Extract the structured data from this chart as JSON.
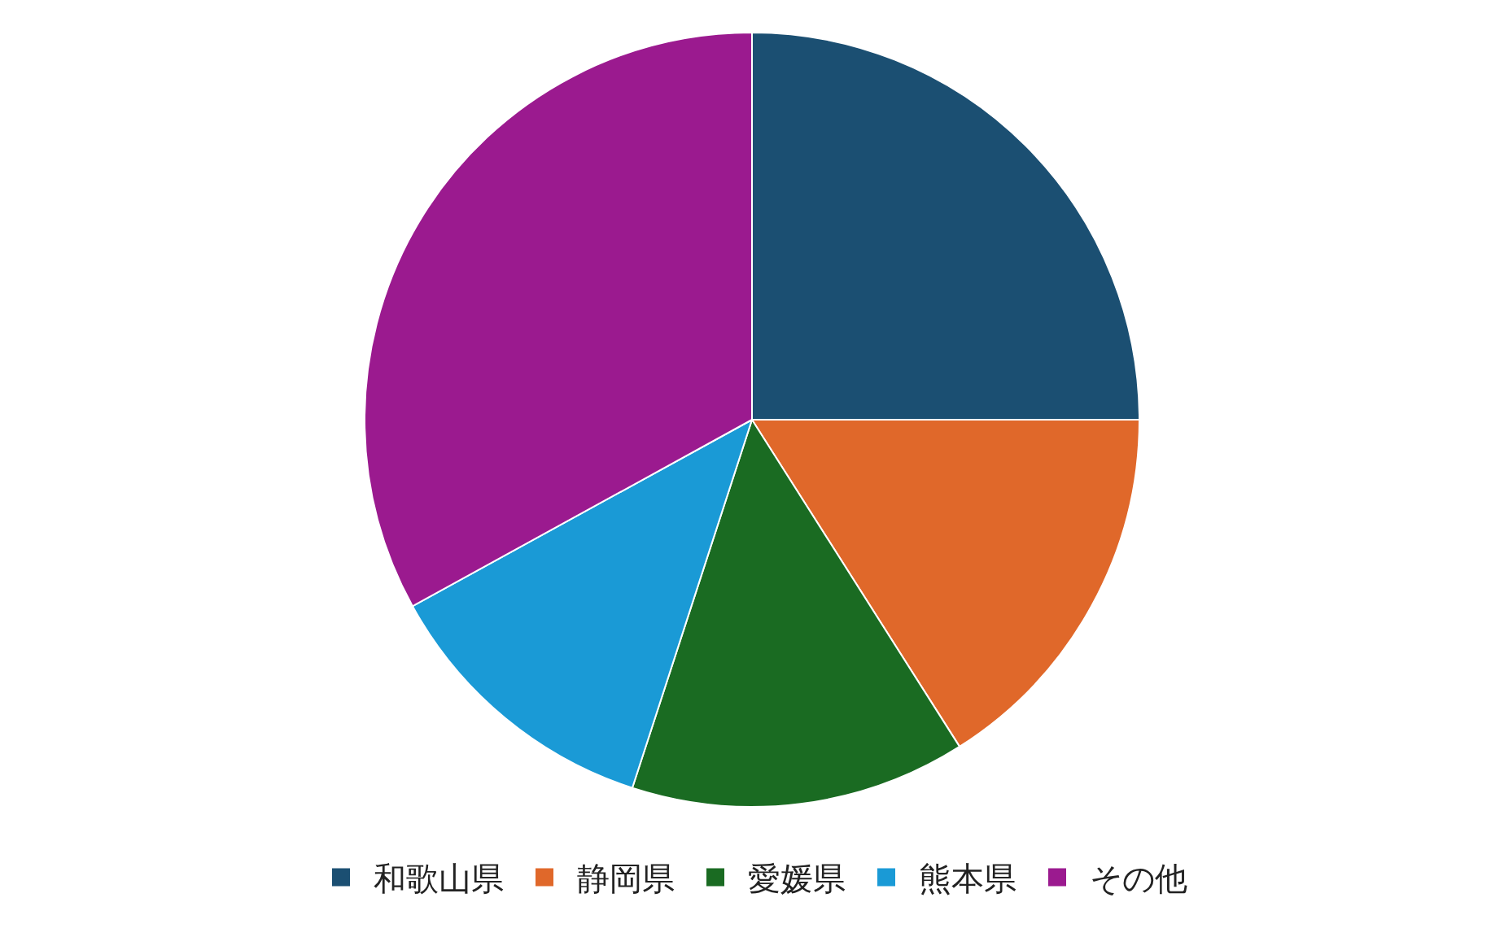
{
  "chart_data": {
    "type": "pie",
    "categories": [
      "和歌山県",
      "静岡県",
      "愛媛県",
      "熊本県",
      "その他"
    ],
    "values": [
      25,
      16,
      14,
      12,
      33
    ],
    "colors": [
      "#1b4f72",
      "#e0682a",
      "#1a6b22",
      "#1a9ad6",
      "#9b1a8f"
    ],
    "legend": "bottom"
  }
}
